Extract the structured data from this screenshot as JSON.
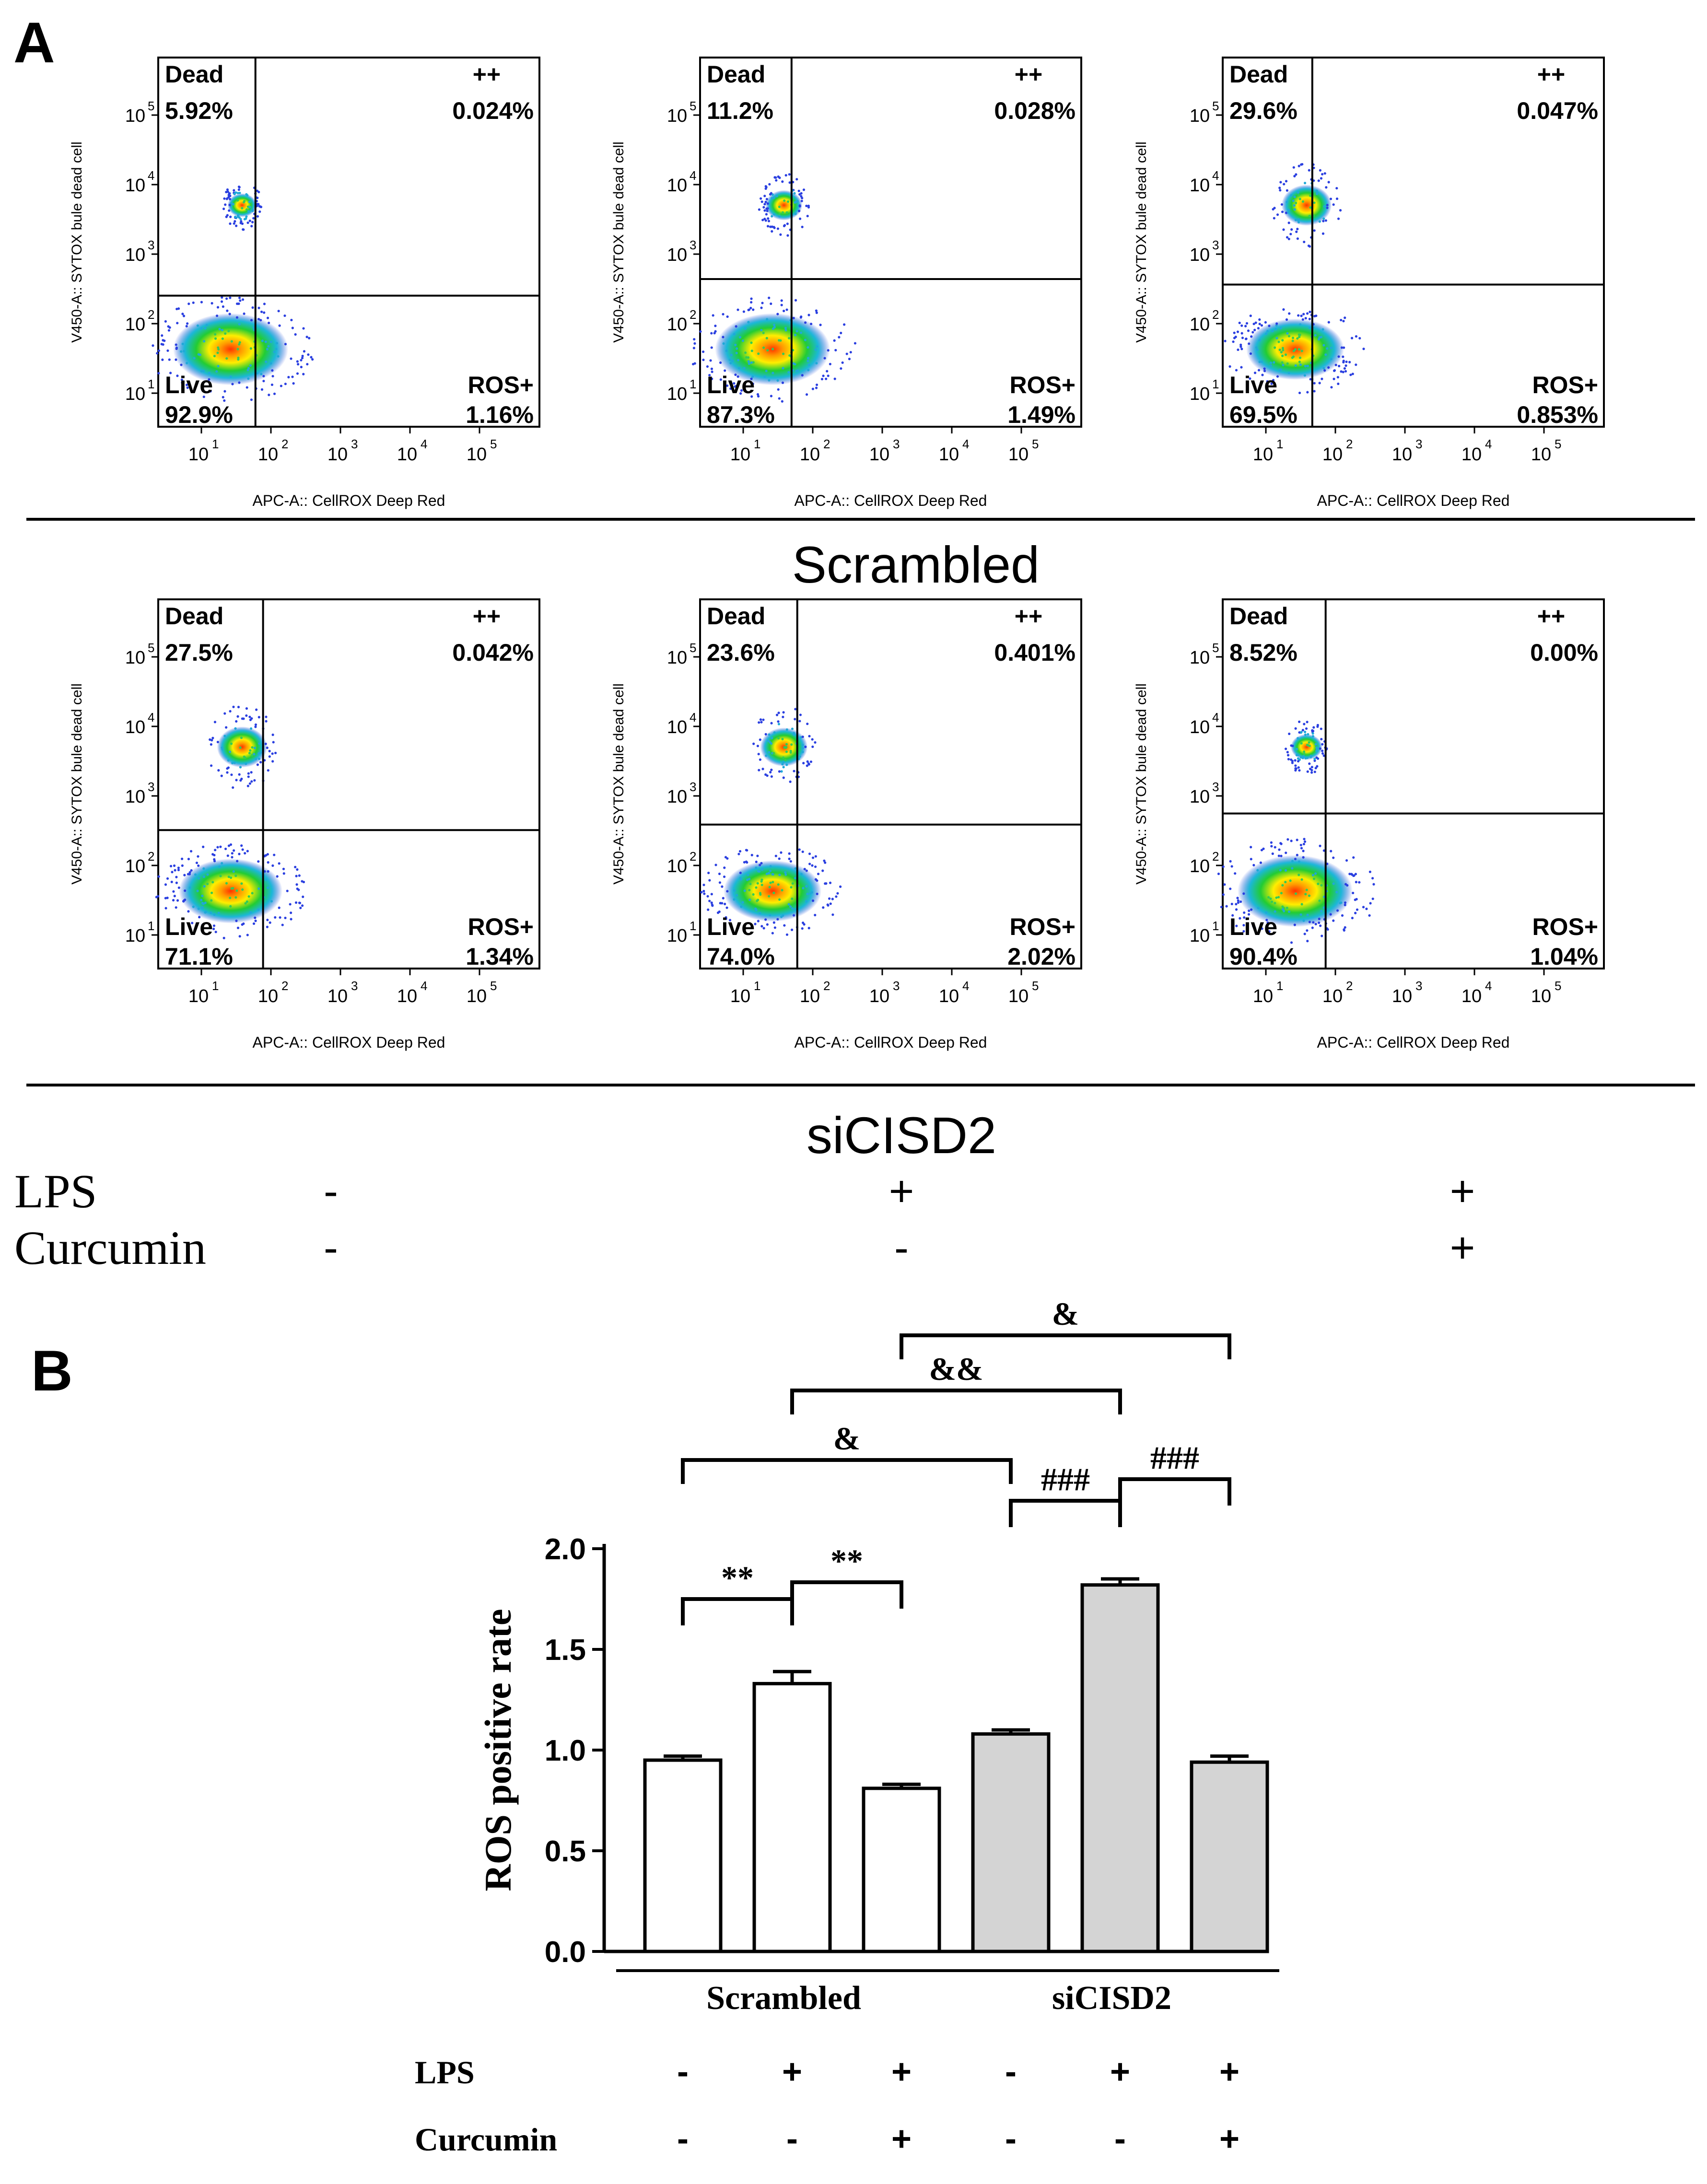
{
  "panel_a": {
    "label": "A",
    "row_titles": [
      "Scrambled",
      "siCISD2"
    ],
    "ylabel": "V450-A:: SYTOX bule dead cell",
    "xlabel": "APC-A:: CellROX Deep Red",
    "quadrant_labels": {
      "dead": "Dead",
      "double": "++",
      "live": "Live",
      "ros": "ROS+"
    },
    "tick_exponents": [
      "1",
      "2",
      "3",
      "4",
      "5"
    ],
    "treatment_rows": [
      {
        "label": "LPS",
        "values": [
          "-",
          "+",
          "+"
        ]
      },
      {
        "label": "Curcumin",
        "values": [
          "-",
          "-",
          "+"
        ]
      }
    ],
    "plots": [
      {
        "name": "scrambled-control",
        "dead": "5.92%",
        "double": "0.024%",
        "live": "92.9%",
        "ros": "1.16%"
      },
      {
        "name": "scrambled-lps",
        "dead": "11.2%",
        "double": "0.028%",
        "live": "87.3%",
        "ros": "1.49%"
      },
      {
        "name": "scrambled-lps-curcumin",
        "dead": "29.6%",
        "double": "0.047%",
        "live": "69.5%",
        "ros": "0.853%"
      },
      {
        "name": "sicisd2-control",
        "dead": "27.5%",
        "double": "0.042%",
        "live": "71.1%",
        "ros": "1.34%"
      },
      {
        "name": "sicisd2-lps",
        "dead": "23.6%",
        "double": "0.401%",
        "live": "74.0%",
        "ros": "2.02%"
      },
      {
        "name": "sicisd2-lps-curcumin",
        "dead": "8.52%",
        "double": "0.00%",
        "live": "90.4%",
        "ros": "1.04%"
      }
    ]
  },
  "chart_data": {
    "type": "bar",
    "panel_label": "B",
    "title": "",
    "xlabel": "",
    "ylabel": "ROS positive rate",
    "ylim": [
      0,
      2.0
    ],
    "yticks": [
      "0.0",
      "0.5",
      "1.0",
      "1.5",
      "2.0"
    ],
    "categories": [
      "Scrambled -/-",
      "Scrambled LPS",
      "Scrambled LPS+Curcumin",
      "siCISD2 -/-",
      "siCISD2 LPS",
      "siCISD2 LPS+Curcumin"
    ],
    "values": [
      0.95,
      1.33,
      0.81,
      1.08,
      1.82,
      0.94
    ],
    "errors": [
      0.02,
      0.06,
      0.02,
      0.02,
      0.03,
      0.03
    ],
    "bar_colors": [
      "#ffffff",
      "#ffffff",
      "#ffffff",
      "#d4d4d4",
      "#d4d4d4",
      "#d4d4d4"
    ],
    "groups": [
      {
        "label": "Scrambled",
        "bars": [
          0,
          1,
          2
        ]
      },
      {
        "label": "siCISD2",
        "bars": [
          3,
          4,
          5
        ]
      }
    ],
    "treatment_rows": [
      {
        "label": "LPS",
        "values": [
          "-",
          "+",
          "+",
          "-",
          "+",
          "+"
        ]
      },
      {
        "label": "Curcumin",
        "values": [
          "-",
          "-",
          "+",
          "-",
          "-",
          "+"
        ]
      }
    ],
    "significance": [
      {
        "from": 0,
        "to": 1,
        "label": "**"
      },
      {
        "from": 1,
        "to": 2,
        "label": "**"
      },
      {
        "from": 3,
        "to": 4,
        "label": "###"
      },
      {
        "from": 4,
        "to": 5,
        "label": "###"
      },
      {
        "from": 0,
        "to": 3,
        "label": "&"
      },
      {
        "from": 1,
        "to": 4,
        "label": "&&"
      },
      {
        "from": 2,
        "to": 5,
        "label": "&"
      }
    ]
  }
}
